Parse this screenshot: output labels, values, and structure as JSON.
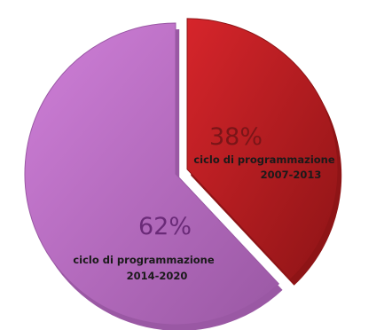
{
  "chart_data": {
    "type": "pie",
    "exploded": true,
    "slices": [
      {
        "value": 38,
        "percent_label": "38%",
        "label_line1": "ciclo di programmazione",
        "label_line2": "2007-2013",
        "color": "#d6252b",
        "color_dark": "#8e1416"
      },
      {
        "value": 62,
        "percent_label": "62%",
        "label_line1": "ciclo di programmazione",
        "label_line2": "2014-2020",
        "color": "#cf7fd8",
        "color_dark": "#9a58a4"
      }
    ]
  }
}
